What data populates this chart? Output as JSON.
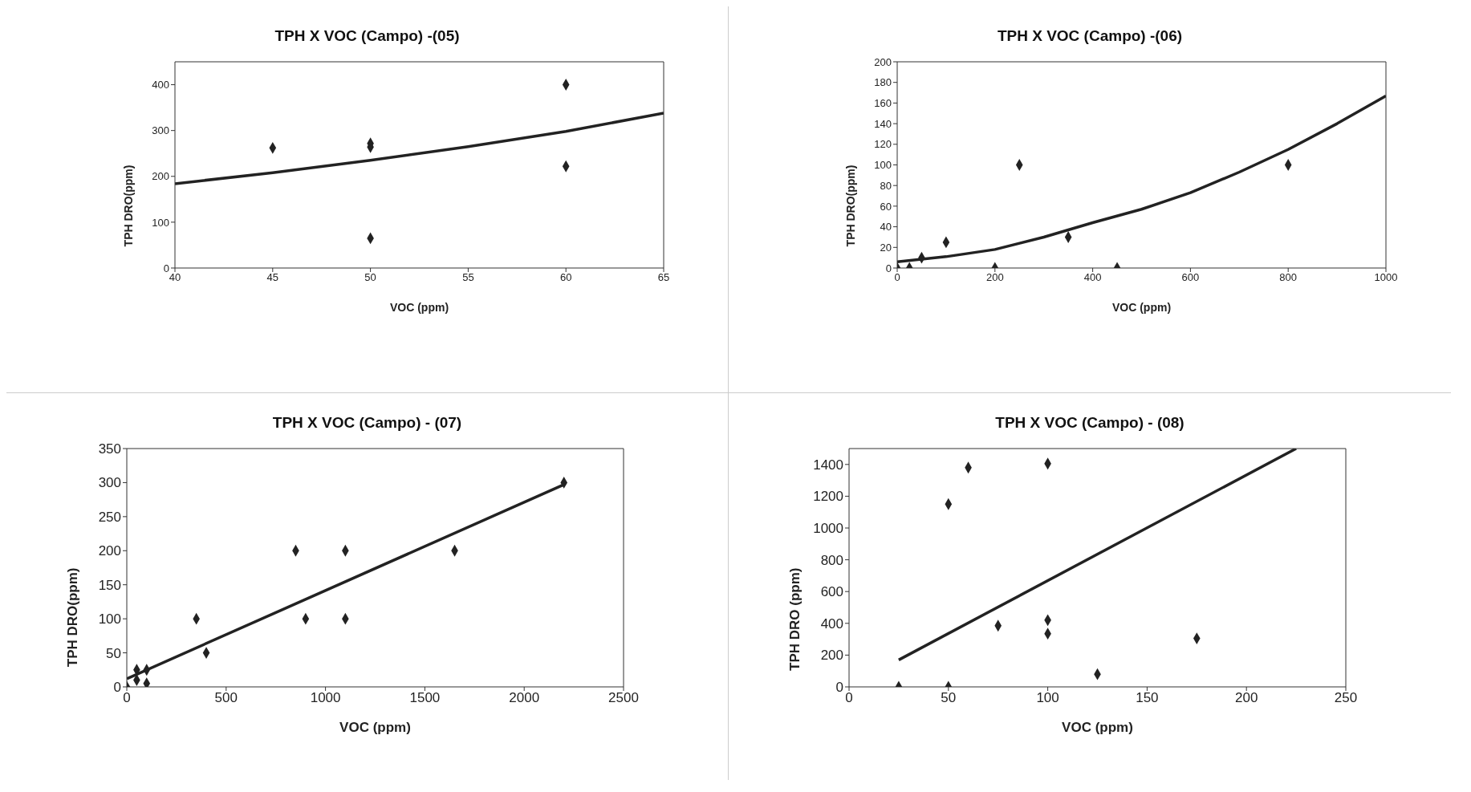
{
  "chart_data": [
    {
      "type": "scatter",
      "title": "TPH X VOC (Campo) -(05)",
      "xlabel": "VOC (ppm)",
      "ylabel": "TPH DRO(ppm)",
      "xlim": [
        40,
        65
      ],
      "xticks": [
        40,
        45,
        50,
        55,
        60,
        65
      ],
      "ylim": [
        0,
        450
      ],
      "yticks": [
        0,
        100,
        200,
        300,
        400
      ],
      "marker": "diamond",
      "legend": false,
      "grid": false,
      "series": [
        {
          "color": "#222222",
          "x": [
            45,
            50,
            50,
            50,
            60,
            60
          ],
          "values": [
            262,
            272,
            264,
            65,
            400,
            222
          ]
        },
        {
          "type": "line",
          "color": "#222222",
          "marker": "none",
          "line_style": "solid",
          "x": [
            40,
            45,
            50,
            55,
            60,
            65
          ],
          "values": [
            184,
            208,
            235,
            265,
            298,
            338
          ]
        }
      ]
    },
    {
      "type": "scatter",
      "title": "TPH X VOC (Campo) -(06)",
      "xlabel": "VOC (ppm)",
      "ylabel": "TPH DRO(ppm)",
      "xlim": [
        0,
        1000
      ],
      "xticks": [
        0,
        200,
        400,
        600,
        800,
        1000
      ],
      "ylim": [
        0,
        200
      ],
      "yticks": [
        0,
        20,
        40,
        60,
        80,
        100,
        120,
        140,
        160,
        180,
        200
      ],
      "marker": "diamond",
      "legend": false,
      "grid": false,
      "series": [
        {
          "color": "#222222",
          "x": [
            0,
            25,
            50,
            100,
            200,
            250,
            350,
            450,
            800
          ],
          "values": [
            0,
            0,
            10,
            25,
            0,
            100,
            30,
            0,
            100
          ]
        },
        {
          "type": "line",
          "color": "#222222",
          "marker": "none",
          "line_style": "solid",
          "x": [
            0,
            100,
            200,
            300,
            400,
            500,
            600,
            700,
            800,
            900,
            1000
          ],
          "values": [
            6,
            11,
            18,
            30,
            44,
            57,
            73,
            93,
            115,
            140,
            167
          ]
        }
      ]
    },
    {
      "type": "scatter",
      "title": "TPH X VOC (Campo) - (07)",
      "xlabel": "VOC (ppm)",
      "ylabel": "TPH DRO(ppm)",
      "xlim": [
        0,
        2500
      ],
      "xticks": [
        0,
        500,
        1000,
        1500,
        2000,
        2500
      ],
      "ylim": [
        0,
        350
      ],
      "yticks": [
        0,
        50,
        100,
        150,
        200,
        250,
        300,
        350
      ],
      "marker": "diamond",
      "legend": false,
      "grid": false,
      "series": [
        {
          "color": "#222222",
          "x": [
            0,
            45,
            50,
            50,
            100,
            100,
            350,
            400,
            850,
            900,
            1100,
            1100,
            1650,
            2200
          ],
          "values": [
            0,
            null,
            25,
            10,
            25,
            5,
            100,
            50,
            200,
            100,
            200,
            100,
            200,
            300
          ]
        },
        {
          "type": "line",
          "color": "#222222",
          "marker": "none",
          "line_style": "solid",
          "x": [
            0,
            2200
          ],
          "values": [
            12,
            297
          ]
        }
      ]
    },
    {
      "type": "scatter",
      "title": "TPH X VOC (Campo) - (08)",
      "xlabel": "VOC (ppm)",
      "ylabel": "TPH DRO (ppm)",
      "xlim": [
        0,
        250
      ],
      "xticks": [
        0,
        50,
        100,
        150,
        200,
        250
      ],
      "ylim": [
        0,
        1500
      ],
      "yticks": [
        0,
        200,
        400,
        600,
        800,
        1000,
        1200,
        1400
      ],
      "marker": "diamond",
      "legend": false,
      "grid": false,
      "series": [
        {
          "color": "#222222",
          "x": [
            25,
            50,
            50,
            60,
            75,
            100,
            100,
            100,
            125,
            175
          ],
          "values": [
            0,
            0,
            1150,
            1380,
            385,
            1405,
            420,
            335,
            80,
            305
          ]
        },
        {
          "type": "line",
          "color": "#222222",
          "marker": "none",
          "line_style": "solid",
          "x": [
            25,
            225
          ],
          "values": [
            170,
            1500
          ]
        }
      ]
    }
  ]
}
